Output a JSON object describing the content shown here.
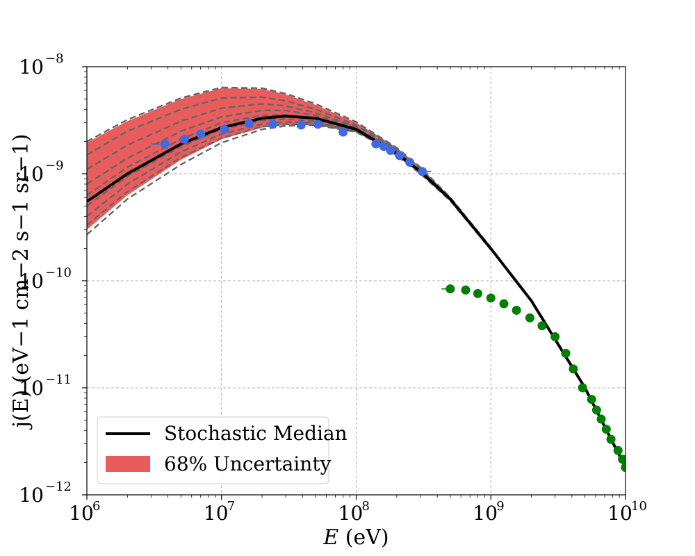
{
  "chart_data": {
    "type": "line",
    "xscale": "log",
    "yscale": "log",
    "xlim": [
      1000000.0,
      10000000000.0
    ],
    "ylim": [
      1e-12,
      1e-08
    ],
    "xlabel": {
      "var": "E",
      "unit": "(eV)"
    },
    "ylabel": {
      "var": "j(E)",
      "unit": "(eV",
      "text": "j(E) (eV−1 cm−2 s−1 sr−1)"
    },
    "x_ticks": [
      {
        "base": "10",
        "exp": "6",
        "value": 1000000.0
      },
      {
        "base": "10",
        "exp": "7",
        "value": 10000000.0
      },
      {
        "base": "10",
        "exp": "8",
        "value": 100000000.0
      },
      {
        "base": "10",
        "exp": "9",
        "value": 1000000000.0
      },
      {
        "base": "10",
        "exp": "10",
        "value": 10000000000.0
      }
    ],
    "y_ticks": [
      {
        "base": "10",
        "exp": "−12",
        "value": 1e-12
      },
      {
        "base": "10",
        "exp": "−11",
        "value": 1e-11
      },
      {
        "base": "10",
        "exp": "−10",
        "value": 1e-10
      },
      {
        "base": "10",
        "exp": "−9",
        "value": 1e-09
      },
      {
        "base": "10",
        "exp": "−8",
        "value": 1e-08
      }
    ],
    "grid": true,
    "legend_position": "lower-left",
    "legend": [
      {
        "label": "Stochastic Median",
        "kind": "line",
        "color": "#000000"
      },
      {
        "label": "68% Uncertainty",
        "kind": "band",
        "color": "#e85c5c"
      }
    ],
    "median": {
      "name": "Stochastic Median",
      "color": "#000000",
      "x": [
        1000000.0,
        2000000.0,
        5000000.0,
        10000000.0,
        20000000.0,
        30000000.0,
        50000000.0,
        100000000.0,
        200000000.0,
        300000000.0,
        500000000.0,
        1000000000.0,
        2000000000.0,
        5000000000.0,
        10000000000.0
      ],
      "y": [
        5.5e-10,
        1e-09,
        1.9e-09,
        2.7e-09,
        3.3e-09,
        3.45e-09,
        3.3e-09,
        2.6e-09,
        1.55e-09,
        1.05e-09,
        5.8e-10,
        2e-10,
        6.5e-11,
        1e-11,
        1.8e-12
      ]
    },
    "band": {
      "name": "68% Uncertainty",
      "color": "#e85c5c",
      "x": [
        1000000.0,
        2000000.0,
        5000000.0,
        10000000.0,
        20000000.0,
        30000000.0,
        50000000.0,
        100000000.0,
        150000000.0,
        200000000.0,
        300000000.0,
        500000000.0
      ],
      "upper": [
        1.95e-09,
        3.1e-09,
        5e-09,
        6.3e-09,
        6.2e-09,
        5.5e-09,
        4.4e-09,
        3e-09,
        2.2e-09,
        1.75e-09,
        1.15e-09,
        6e-10
      ],
      "lower": [
        3e-10,
        6.3e-10,
        1.35e-09,
        2.1e-09,
        2.7e-09,
        2.85e-09,
        2.85e-09,
        2.45e-09,
        1.9e-09,
        1.5e-09,
        1e-09,
        5.6e-10
      ]
    },
    "dashed_curves": {
      "color": "#666666",
      "x": [
        1000000.0,
        2000000.0,
        5000000.0,
        10000000.0,
        20000000.0,
        30000000.0,
        50000000.0,
        100000000.0,
        150000000.0,
        200000000.0,
        300000000.0,
        500000000.0,
        1000000000.0
      ],
      "curves": [
        [
          2e-09,
          3.2e-09,
          5.1e-09,
          6.4e-09,
          6.3e-09,
          5.6e-09,
          4.5e-09,
          3.05e-09,
          2.2e-09,
          1.75e-09,
          1.15e-09,
          6e-10,
          2.05e-10
        ],
        [
          1.5e-09,
          2.5e-09,
          4e-09,
          5.1e-09,
          5.2e-09,
          4.8e-09,
          4e-09,
          2.85e-09,
          2.15e-09,
          1.7e-09,
          1.12e-09,
          5.9e-10,
          2e-10
        ],
        [
          1.1e-09,
          1.85e-09,
          3.1e-09,
          4.1e-09,
          4.5e-09,
          4.3e-09,
          3.7e-09,
          2.75e-09,
          2.05e-09,
          1.65e-09,
          1.1e-09,
          5.85e-10,
          2e-10
        ],
        [
          8e-10,
          1.4e-09,
          2.5e-09,
          3.4e-09,
          3.9e-09,
          3.9e-09,
          3.5e-09,
          2.7e-09,
          2e-09,
          1.6e-09,
          1.08e-09,
          5.8e-10,
          2e-10
        ],
        [
          6.3e-10,
          1.15e-09,
          2.1e-09,
          3e-09,
          3.5e-09,
          3.55e-09,
          3.3e-09,
          2.6e-09,
          1.95e-09,
          1.58e-09,
          1.06e-09,
          5.8e-10,
          2e-10
        ],
        [
          5e-10,
          9.5e-10,
          1.8e-09,
          2.6e-09,
          3.15e-09,
          3.25e-09,
          3.1e-09,
          2.55e-09,
          1.95e-09,
          1.55e-09,
          1.05e-09,
          5.75e-10,
          1.98e-10
        ],
        [
          4e-10,
          8e-10,
          1.6e-09,
          2.35e-09,
          2.9e-09,
          3.05e-09,
          3e-09,
          2.5e-09,
          1.92e-09,
          1.53e-09,
          1.04e-09,
          5.7e-10,
          1.97e-10
        ],
        [
          3.3e-10,
          6.8e-10,
          1.42e-09,
          2.15e-09,
          2.75e-09,
          2.9e-09,
          2.9e-09,
          2.48e-09,
          1.9e-09,
          1.5e-09,
          1.02e-09,
          5.65e-10,
          1.96e-10
        ],
        [
          2.7e-10,
          5.8e-10,
          1.22e-09,
          1.95e-09,
          2.6e-09,
          2.8e-09,
          2.85e-09,
          2.45e-09,
          1.88e-09,
          1.48e-09,
          1e-09,
          5.6e-10,
          1.95e-10
        ]
      ]
    },
    "series": [
      {
        "name": "blue data",
        "color": "#4169e1",
        "x": [
          3800000.0,
          5300000.0,
          7000000.0,
          10500000.0,
          16000000.0,
          24000000.0,
          39000000.0,
          52000000.0,
          80000000.0,
          140000000.0,
          160000000.0,
          180000000.0,
          210000000.0,
          250000000.0,
          310000000.0
        ],
        "y": [
          1.9e-09,
          2.1e-09,
          2.35e-09,
          2.6e-09,
          2.95e-09,
          2.9e-09,
          2.85e-09,
          2.9e-09,
          2.45e-09,
          1.9e-09,
          1.8e-09,
          1.65e-09,
          1.48e-09,
          1.28e-09,
          1.05e-09
        ],
        "xerr_left": [
          3000000.0,
          null,
          null,
          null,
          null,
          null,
          null,
          null,
          null,
          null,
          null,
          null,
          null,
          null,
          null
        ],
        "xerr_right": [
          null,
          null,
          null,
          null,
          null,
          null,
          null,
          null,
          null,
          null,
          null,
          null,
          null,
          null,
          360000000.0
        ]
      },
      {
        "name": "green data",
        "color": "#008000",
        "x": [
          500000000.0,
          650000000.0,
          800000000.0,
          1000000000.0,
          1250000000.0,
          1550000000.0,
          1950000000.0,
          2400000000.0,
          3000000000.0,
          3600000000.0,
          4100000000.0,
          4800000000.0,
          5600000000.0,
          6100000000.0,
          6600000000.0,
          7200000000.0,
          7800000000.0,
          8800000000.0,
          9500000000.0,
          10000000000.0
        ],
        "y": [
          8.4e-11,
          8.2e-11,
          7.6e-11,
          6.9e-11,
          6.1e-11,
          5.3e-11,
          4.5e-11,
          3.8e-11,
          3e-11,
          2.1e-11,
          1.5e-11,
          1e-11,
          7.8e-12,
          6.2e-12,
          5.1e-12,
          4.1e-12,
          3.3e-12,
          2.6e-12,
          2.15e-12,
          1.8e-12
        ],
        "xerr_left": [
          430000000.0,
          null,
          null,
          null,
          null,
          null,
          null,
          null,
          null,
          null,
          null,
          null,
          null,
          null,
          null,
          null,
          null,
          null,
          null,
          null
        ],
        "xerr_right": [
          null,
          null,
          null,
          null,
          null,
          null,
          null,
          null,
          null,
          null,
          null,
          null,
          null,
          null,
          null,
          null,
          null,
          null,
          null,
          null
        ]
      }
    ]
  }
}
